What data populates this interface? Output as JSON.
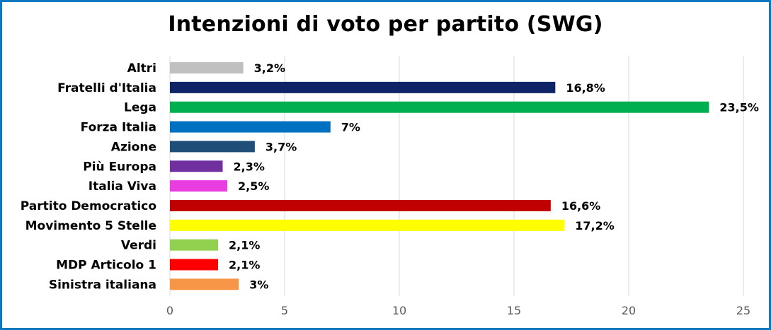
{
  "chart_data": {
    "type": "bar",
    "orientation": "horizontal",
    "title": "Intenzioni di voto per partito (SWG)",
    "xlabel": "",
    "ylabel": "",
    "xlim": [
      0,
      25
    ],
    "x_ticks": [
      "0",
      "5",
      "10",
      "15",
      "20",
      "25"
    ],
    "grid": "vertical",
    "legend": "none",
    "categories": [
      "Altri",
      "Fratelli d'Italia",
      "Lega",
      "Forza Italia",
      "Azione",
      "Più Europa",
      "Italia Viva",
      "Partito Democratico",
      "Movimento 5 Stelle",
      "Verdi",
      "MDP Articolo 1",
      "Sinistra italiana"
    ],
    "values": [
      3.2,
      16.8,
      23.5,
      7,
      3.7,
      2.3,
      2.5,
      16.6,
      17.2,
      2.1,
      2.1,
      3
    ],
    "value_labels": [
      "3,2%",
      "16,8%",
      "23,5%",
      "7%",
      "3,7%",
      "2,3%",
      "2,5%",
      "16,6%",
      "17,2%",
      "2,1%",
      "2,1%",
      "3%"
    ],
    "colors": [
      "#c0c0c0",
      "#0e2466",
      "#00b050",
      "#0070c0",
      "#1f4e79",
      "#7030a0",
      "#e83ee0",
      "#c00000",
      "#ffff00",
      "#92d050",
      "#ff0000",
      "#f79646"
    ]
  },
  "colors": {
    "frame_border": "#0b78c0",
    "grid": "#d9d9d9",
    "tick_text": "#595959"
  }
}
